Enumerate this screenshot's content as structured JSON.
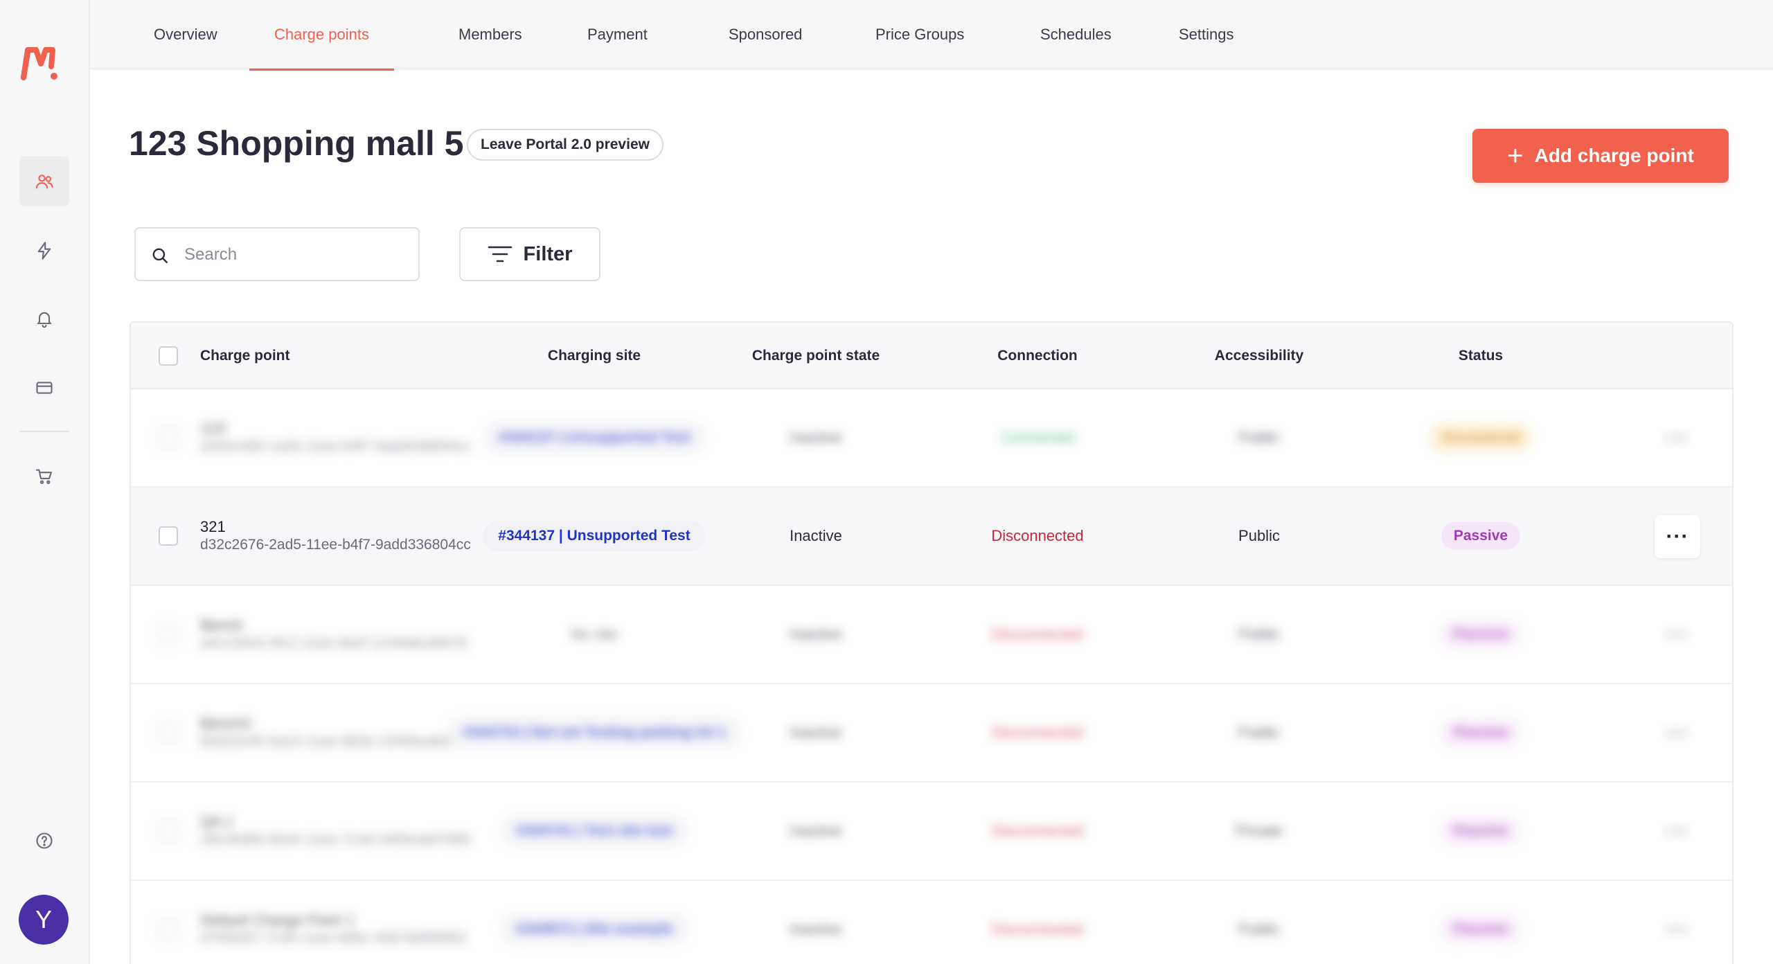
{
  "brand": {
    "logo_text": "M!",
    "accent": "#f0604f"
  },
  "sidebar": {
    "items": [
      {
        "name": "members-icon",
        "active": true
      },
      {
        "name": "lightning-icon",
        "active": false
      },
      {
        "name": "bell-icon",
        "active": false
      },
      {
        "name": "card-icon",
        "active": false
      },
      {
        "name": "cart-icon",
        "active": false
      }
    ],
    "help_icon": "help-icon",
    "avatar_initial": "Y"
  },
  "nav": {
    "tabs": [
      {
        "label": "Overview",
        "active": false
      },
      {
        "label": "Charge points",
        "active": true
      },
      {
        "label": "Members",
        "active": false
      },
      {
        "label": "Payment",
        "active": false
      },
      {
        "label": "Sponsored",
        "active": false
      },
      {
        "label": "Price Groups",
        "active": false
      },
      {
        "label": "Schedules",
        "active": false
      },
      {
        "label": "Settings",
        "active": false
      }
    ]
  },
  "header": {
    "title": "123 Shopping mall 5",
    "portal_pill": "Leave Portal 2.0 preview",
    "add_button": "Add charge point"
  },
  "toolbar": {
    "search_placeholder": "Search",
    "filter_label": "Filter"
  },
  "table": {
    "columns": [
      "Charge point",
      "Charging site",
      "Charge point state",
      "Connection",
      "Accessibility",
      "Status"
    ],
    "rows": [
      {
        "name": "123",
        "id": "a2b3c4d5-1a2b-11ee-b4f7-9add336804cc",
        "site": "#344137 | Unsupported Test",
        "site_pill": true,
        "state": "Inactive",
        "connection": "Connected",
        "conn_type": "ok",
        "access": "Public",
        "status": "Occasional",
        "status_type": "warn",
        "blurred": true
      },
      {
        "name": "321",
        "id": "d32c2676-2ad5-11ee-b4f7-9add336804cc",
        "site": "#344137 | Unsupported Test",
        "site_pill": true,
        "state": "Inactive",
        "connection": "Disconnected",
        "conn_type": "disc",
        "access": "Public",
        "status": "Passive",
        "status_type": "passive",
        "blurred": false
      },
      {
        "name": "Bench",
        "id": "a4c12b34-4f12-11ee-9a2f-1234abcd5678",
        "site": "No site",
        "site_pill": false,
        "state": "Inactive",
        "connection": "Disconnected",
        "conn_type": "disc",
        "access": "Public",
        "status": "Passive",
        "status_type": "passive",
        "blurred": true
      },
      {
        "name": "Bench2",
        "id": "b5d23c45-5a23-11ee-8b3e-2345bcde6789",
        "site": "#344733 | Not set Testing parking lot 1",
        "site_pill": true,
        "state": "Inactive",
        "connection": "Disconnected",
        "conn_type": "disc",
        "access": "Public",
        "status": "Passive",
        "status_type": "passive",
        "blurred": true
      },
      {
        "name": "QA 1",
        "id": "c6e34d56-6b34-11ee-7c4d-3456cdef7890",
        "site": "#344741 | Test site test",
        "site_pill": true,
        "state": "Inactive",
        "connection": "Disconnected",
        "conn_type": "disc",
        "access": "Private",
        "status": "Passive",
        "status_type": "passive",
        "blurred": true
      },
      {
        "name": "Default Charge Point 1",
        "id": "d7f45e67-7c45-11ee-6d5c-4567def08901",
        "site": "#344873 | Site example",
        "site_pill": true,
        "state": "Inactive",
        "connection": "Disconnected",
        "conn_type": "disc",
        "access": "Public",
        "status": "Passive",
        "status_type": "passive",
        "blurred": true
      }
    ],
    "more_label": "···"
  }
}
